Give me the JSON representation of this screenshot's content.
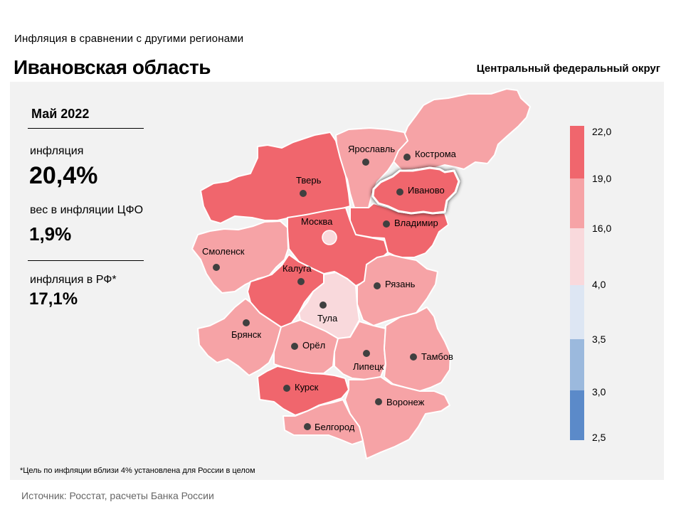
{
  "header": {
    "subtitle": "Инфляция  в сравнении  с другими  регионами",
    "title": "Ивановская область",
    "district": "Центральный федеральный округ"
  },
  "info": {
    "date": "Май 2022",
    "inflation_label": "инфляция",
    "inflation_value": "20,4%",
    "weight_label": "вес в инфляции  ЦФО",
    "weight_value": "1,9%",
    "russia_label": "инфляция  в РФ*",
    "russia_value": "17,1%"
  },
  "footnote": "*Цель по инфляции вблизи 4% установлена для России в целом",
  "source": "Источник: Росстат, расчеты Банка России",
  "legend": {
    "ticks": [
      "22,0",
      "19,0",
      "16,0",
      "4,0",
      "3,5",
      "3,0",
      "2,5"
    ],
    "colors": [
      "#f0666d",
      "#f6a3a6",
      "#f9d9dc",
      "#dde6f3",
      "#9bb9dd",
      "#5b8ac9"
    ]
  },
  "map": {
    "selected_region": "Иваново",
    "colors": {
      "high": "#f0666d",
      "mid": "#f6a3a6",
      "low": "#f9d9dc",
      "border": "#ffffff",
      "capital_marker": "#f9d9dc",
      "marker": "#404040"
    },
    "regions": [
      {
        "key": "kostroma",
        "label": "Кострома",
        "level": "mid"
      },
      {
        "key": "yaroslavl",
        "label": "Ярославль",
        "level": "mid"
      },
      {
        "key": "ivanovo",
        "label": "Иваново",
        "level": "high"
      },
      {
        "key": "tver",
        "label": "Тверь",
        "level": "high"
      },
      {
        "key": "vladimir",
        "label": "Владимир",
        "level": "high"
      },
      {
        "key": "moscow",
        "label": "Москва",
        "level": "high"
      },
      {
        "key": "smolensk",
        "label": "Смоленск",
        "level": "mid"
      },
      {
        "key": "kaluga",
        "label": "Калуга",
        "level": "high"
      },
      {
        "key": "ryazan",
        "label": "Рязань",
        "level": "mid"
      },
      {
        "key": "tula",
        "label": "Тула",
        "level": "low"
      },
      {
        "key": "bryansk",
        "label": "Брянск",
        "level": "mid"
      },
      {
        "key": "orel",
        "label": "Орёл",
        "level": "mid"
      },
      {
        "key": "lipetsk",
        "label": "Липецк",
        "level": "mid"
      },
      {
        "key": "tambov",
        "label": "Тамбов",
        "level": "mid"
      },
      {
        "key": "kursk",
        "label": "Курск",
        "level": "high"
      },
      {
        "key": "voronezh",
        "label": "Воронеж",
        "level": "mid"
      },
      {
        "key": "belgorod",
        "label": "Белгород",
        "level": "mid"
      }
    ]
  }
}
